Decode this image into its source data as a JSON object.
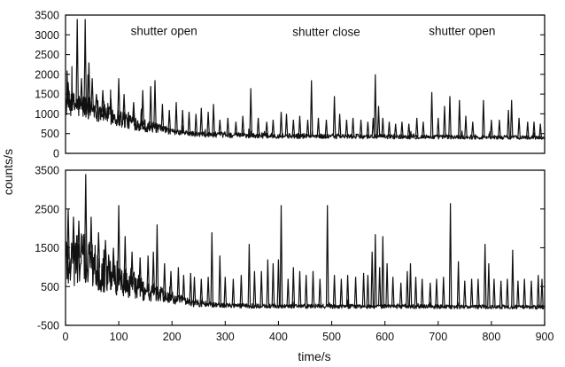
{
  "chart_data": [
    {
      "type": "line",
      "panel": "top",
      "xlim": [
        0,
        900
      ],
      "ylim": [
        0,
        3500
      ],
      "yticks": [
        "0",
        "500",
        "1000",
        "1500",
        "2000",
        "2500",
        "3000",
        "3500"
      ],
      "annotations": [
        {
          "text": "shutter open",
          "x": 185,
          "y": 3000
        },
        {
          "text": "shutter close",
          "x": 490,
          "y": 2970
        },
        {
          "text": "shutter open",
          "x": 745,
          "y": 2990
        }
      ],
      "series": [
        {
          "baseline": [
            [
              0,
              1250
            ],
            [
              50,
              1150
            ],
            [
              100,
              900
            ],
            [
              150,
              700
            ],
            [
              200,
              550
            ],
            [
              250,
              480
            ],
            [
              350,
              450
            ],
            [
              500,
              430
            ],
            [
              650,
              420
            ],
            [
              900,
              400
            ]
          ],
          "noise": [
            [
              0,
              350
            ],
            [
              100,
              250
            ],
            [
              200,
              70
            ],
            [
              900,
              50
            ]
          ],
          "spikes": [
            [
              5,
              1800
            ],
            [
              12,
              1600
            ],
            [
              22,
              3400
            ],
            [
              30,
              1900
            ],
            [
              37,
              3400
            ],
            [
              44,
              2300
            ],
            [
              50,
              1900
            ],
            [
              58,
              1500
            ],
            [
              70,
              1600
            ],
            [
              85,
              1400
            ],
            [
              100,
              1900
            ],
            [
              110,
              1500
            ],
            [
              128,
              1300
            ],
            [
              145,
              1600
            ],
            [
              160,
              1700
            ],
            [
              168,
              1850
            ],
            [
              182,
              1250
            ],
            [
              195,
              1100
            ],
            [
              208,
              1300
            ],
            [
              220,
              1100
            ],
            [
              232,
              1050
            ],
            [
              245,
              1000
            ],
            [
              255,
              1150
            ],
            [
              268,
              1050
            ],
            [
              278,
              1250
            ],
            [
              290,
              850
            ],
            [
              305,
              900
            ],
            [
              320,
              800
            ],
            [
              333,
              950
            ],
            [
              348,
              1650
            ],
            [
              362,
              900
            ],
            [
              378,
              800
            ],
            [
              390,
              850
            ],
            [
              405,
              1050
            ],
            [
              415,
              1000
            ],
            [
              428,
              850
            ],
            [
              440,
              950
            ],
            [
              455,
              850
            ],
            [
              462,
              1850
            ],
            [
              475,
              900
            ],
            [
              490,
              850
            ],
            [
              505,
              1450
            ],
            [
              515,
              1000
            ],
            [
              528,
              850
            ],
            [
              540,
              900
            ],
            [
              555,
              850
            ],
            [
              568,
              800
            ],
            [
              578,
              900
            ],
            [
              582,
              2000
            ],
            [
              588,
              1200
            ],
            [
              596,
              900
            ],
            [
              608,
              800
            ],
            [
              620,
              750
            ],
            [
              632,
              800
            ],
            [
              645,
              750
            ],
            [
              660,
              900
            ],
            [
              672,
              800
            ],
            [
              688,
              1550
            ],
            [
              700,
              900
            ],
            [
              712,
              1200
            ],
            [
              722,
              1450
            ],
            [
              740,
              1350
            ],
            [
              752,
              950
            ],
            [
              765,
              800
            ],
            [
              785,
              1350
            ],
            [
              800,
              850
            ],
            [
              815,
              850
            ],
            [
              832,
              1100
            ],
            [
              838,
              1350
            ],
            [
              852,
              900
            ],
            [
              868,
              800
            ],
            [
              880,
              800
            ],
            [
              892,
              750
            ]
          ]
        }
      ]
    },
    {
      "type": "line",
      "panel": "bottom",
      "xlim": [
        0,
        900
      ],
      "ylim": [
        -500,
        3500
      ],
      "xlabel": "time/s",
      "xticks": [
        "0",
        "100",
        "200",
        "300",
        "400",
        "500",
        "600",
        "700",
        "800",
        "900"
      ],
      "yticks": [
        "-500",
        "500",
        "1500",
        "2500",
        "3500"
      ],
      "series": [
        {
          "baseline": [
            [
              0,
              1200
            ],
            [
              30,
              1250
            ],
            [
              60,
              1000
            ],
            [
              100,
              700
            ],
            [
              150,
              400
            ],
            [
              200,
              200
            ],
            [
              240,
              80
            ],
            [
              280,
              20
            ],
            [
              350,
              0
            ],
            [
              900,
              -30
            ]
          ],
          "noise": [
            [
              0,
              800
            ],
            [
              50,
              650
            ],
            [
              100,
              450
            ],
            [
              160,
              250
            ],
            [
              220,
              120
            ],
            [
              280,
              60
            ],
            [
              900,
              50
            ]
          ],
          "spikes": [
            [
              5,
              2500
            ],
            [
              15,
              2300
            ],
            [
              25,
              2200
            ],
            [
              38,
              3400
            ],
            [
              48,
              2300
            ],
            [
              62,
              1900
            ],
            [
              75,
              1700
            ],
            [
              90,
              1500
            ],
            [
              100,
              2600
            ],
            [
              112,
              1800
            ],
            [
              125,
              1400
            ],
            [
              140,
              1250
            ],
            [
              155,
              1300
            ],
            [
              165,
              1400
            ],
            [
              172,
              2100
            ],
            [
              186,
              1100
            ],
            [
              198,
              900
            ],
            [
              212,
              1000
            ],
            [
              222,
              800
            ],
            [
              235,
              850
            ],
            [
              242,
              750
            ],
            [
              255,
              700
            ],
            [
              268,
              750
            ],
            [
              275,
              1900
            ],
            [
              290,
              1300
            ],
            [
              300,
              750
            ],
            [
              315,
              700
            ],
            [
              330,
              800
            ],
            [
              345,
              1600
            ],
            [
              355,
              900
            ],
            [
              368,
              900
            ],
            [
              380,
              1200
            ],
            [
              390,
              1100
            ],
            [
              400,
              1200
            ],
            [
              405,
              2600
            ],
            [
              418,
              700
            ],
            [
              428,
              1000
            ],
            [
              440,
              900
            ],
            [
              452,
              800
            ],
            [
              465,
              900
            ],
            [
              478,
              700
            ],
            [
              492,
              2600
            ],
            [
              505,
              800
            ],
            [
              518,
              700
            ],
            [
              530,
              800
            ],
            [
              545,
              750
            ],
            [
              560,
              850
            ],
            [
              568,
              800
            ],
            [
              576,
              1400
            ],
            [
              582,
              1850
            ],
            [
              590,
              1000
            ],
            [
              596,
              1800
            ],
            [
              604,
              1100
            ],
            [
              615,
              750
            ],
            [
              630,
              600
            ],
            [
              642,
              900
            ],
            [
              648,
              1100
            ],
            [
              658,
              750
            ],
            [
              670,
              700
            ],
            [
              685,
              600
            ],
            [
              697,
              700
            ],
            [
              710,
              750
            ],
            [
              723,
              2650
            ],
            [
              738,
              1150
            ],
            [
              750,
              650
            ],
            [
              763,
              700
            ],
            [
              775,
              700
            ],
            [
              788,
              1600
            ],
            [
              795,
              1100
            ],
            [
              805,
              700
            ],
            [
              818,
              650
            ],
            [
              830,
              700
            ],
            [
              840,
              1450
            ],
            [
              850,
              650
            ],
            [
              862,
              700
            ],
            [
              875,
              650
            ],
            [
              888,
              800
            ],
            [
              895,
              700
            ]
          ]
        }
      ]
    }
  ],
  "shared_ylabel": "counts/s"
}
